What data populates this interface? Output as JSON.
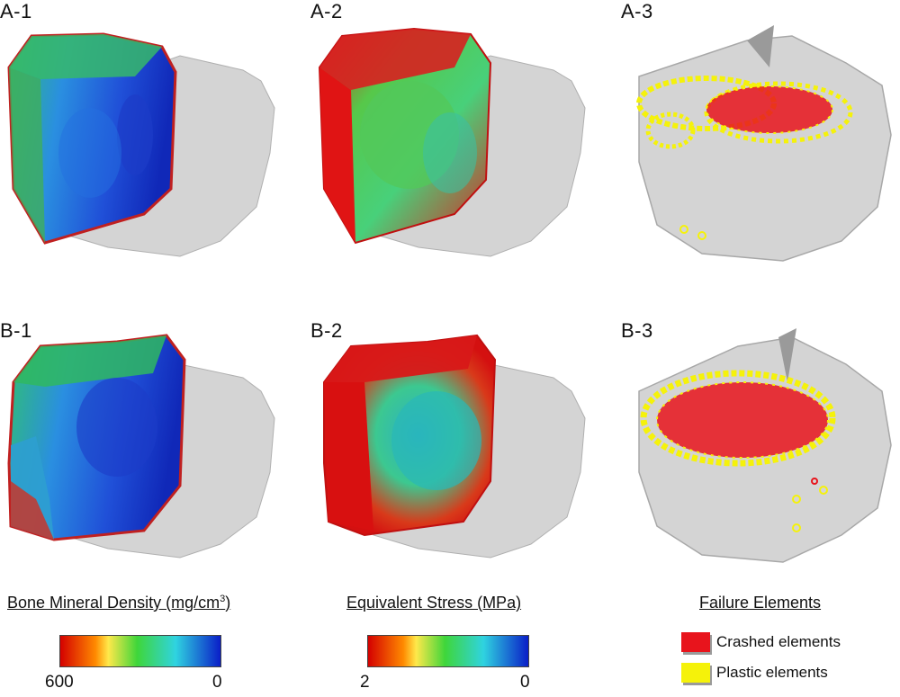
{
  "panels": {
    "a1": {
      "label": "A-1"
    },
    "a2": {
      "label": "A-2"
    },
    "a3": {
      "label": "A-3"
    },
    "b1": {
      "label": "B-1"
    },
    "b2": {
      "label": "B-2"
    },
    "b3": {
      "label": "B-3"
    }
  },
  "legends": {
    "density": {
      "title": "Bone Mineral Density (mg/cm",
      "title_sup": "3",
      "title_end": ")",
      "min_label": "600",
      "max_label": "0"
    },
    "stress": {
      "title": "Equivalent Stress (MPa)",
      "min_label": "2",
      "max_label": "0"
    },
    "failure": {
      "title": "Failure Elements",
      "items": [
        {
          "label": "Crashed elements",
          "color": "#e8141c"
        },
        {
          "label": "Plastic elements",
          "color": "#f5f20a"
        }
      ]
    }
  },
  "colors": {
    "bone_shell": "#d4d4d4",
    "bone_shell_edge": "#a8a8a8",
    "crashed": "#e8141c",
    "plastic": "#f5f20a"
  },
  "icons": {
    "density_colorbar": "gradient-red-yellow-green-cyan-blue",
    "stress_colorbar": "gradient-red-yellow-green-cyan-blue"
  }
}
